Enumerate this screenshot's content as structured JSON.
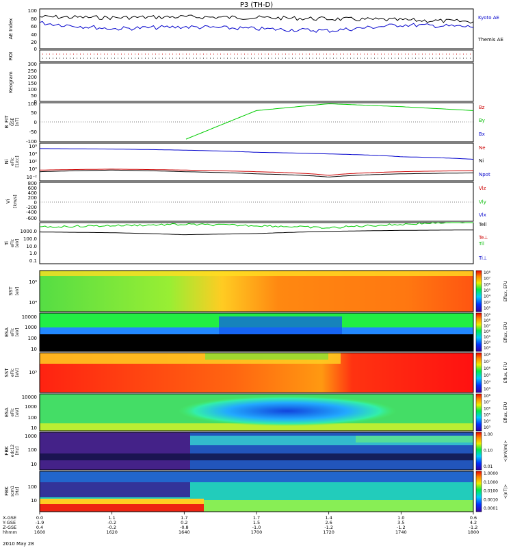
{
  "figure": {
    "title": "P3 (TH-D)",
    "date_label": "2010 May 28"
  },
  "x_axis": {
    "row_labels": [
      "X-GSE",
      "Y-GSE",
      "Z-GSE",
      "hhmm"
    ],
    "columns": [
      {
        "xgse": "0.0",
        "ygse": "-1.9",
        "zgse": "0.4",
        "hhmm": "1600"
      },
      {
        "xgse": "1.1",
        "ygse": "-0.2",
        "zgse": "-0.2",
        "hhmm": "1620"
      },
      {
        "xgse": "1.7",
        "ygse": "0.2",
        "zgse": "-0.8",
        "hhmm": "1640"
      },
      {
        "xgse": "1.7",
        "ygse": "1.5",
        "zgse": "-1.0",
        "hhmm": "1700"
      },
      {
        "xgse": "1.4",
        "ygse": "2.6",
        "zgse": "-1.2",
        "hhmm": "1720"
      },
      {
        "xgse": "1.0",
        "ygse": "3.5",
        "zgse": "-1.2",
        "hhmm": "1740"
      },
      {
        "xgse": "0.6",
        "ygse": "4.2",
        "zgse": "-1.2",
        "hhmm": "1800"
      }
    ]
  },
  "panels": {
    "ae": {
      "ylabel": "AE Index",
      "ticks": [
        "100",
        "80",
        "60",
        "40",
        "20",
        "0"
      ],
      "legend": [
        {
          "text": "Kyoto AE",
          "color": "#0000cc"
        },
        {
          "text": "Themis AE",
          "color": "#000000"
        }
      ]
    },
    "roi": {
      "ylabel": "ROI"
    },
    "keogram": {
      "ylabel": "Keogram",
      "ticks": [
        "300",
        "250",
        "200",
        "150",
        "100",
        "50",
        "0"
      ]
    },
    "bfit": {
      "ylabel": "B_FIT",
      "sublabel1": "GSE",
      "sublabel2": "[nT]",
      "ticks": [
        "100",
        "50",
        "0",
        "-50",
        "-100"
      ],
      "legend": [
        {
          "text": "Bz",
          "color": "#cc0000"
        },
        {
          "text": "By",
          "color": "#00bb00"
        },
        {
          "text": "Bx",
          "color": "#0000cc"
        }
      ]
    },
    "ni": {
      "ylabel": "Ni",
      "sublabel1": "eFlc",
      "sublabel2": "[1/cc]",
      "ticks": [
        "10⁸",
        "10⁴",
        "10²",
        "10⁰",
        "10⁻²"
      ],
      "legend": [
        {
          "text": "Ne",
          "color": "#cc0000"
        },
        {
          "text": "Ni",
          "color": "#000000"
        },
        {
          "text": "Npot",
          "color": "#0000cc"
        }
      ]
    },
    "vi": {
      "ylabel": "Vi",
      "sublabel2": "[km/s]",
      "ticks": [
        "800",
        "600",
        "400",
        "200",
        "0",
        "-200",
        "-400",
        "-600"
      ],
      "legend": [
        {
          "text": "Vlz",
          "color": "#cc0000"
        },
        {
          "text": "Vly",
          "color": "#00bb00"
        },
        {
          "text": "Vlx",
          "color": "#0000cc"
        }
      ]
    },
    "ti": {
      "ylabel": "Ti",
      "sublabel1": "eFlc",
      "sublabel2": "[eV]",
      "ticks": [
        "1000.0",
        "100.0",
        "10.0",
        "1.0",
        "0.1"
      ],
      "legend": [
        {
          "text": "Tell",
          "color": "#000000"
        },
        {
          "text": "Te⊥",
          "color": "#cc0000"
        },
        {
          "text": "Til",
          "color": "#00bb00"
        },
        {
          "text": "Ti⊥",
          "color": "#0000cc"
        }
      ]
    },
    "sst_e": {
      "ylabel": "SST",
      "sublabel2": "[eV]",
      "ticks": [
        "10⁶",
        "10⁴"
      ],
      "cb_label": "Eflux, EFU",
      "cb_ticks": [
        "10⁸",
        "10⁷",
        "10⁶",
        "10⁵",
        "10⁴",
        "10³",
        "10²"
      ]
    },
    "esa_e": {
      "ylabel": "ESA",
      "sublabel1": "eFlc",
      "sublabel2": "[eV]",
      "ticks": [
        "10000",
        "1000",
        "100",
        "10"
      ],
      "cb_label": "Eflux, EFU",
      "cb_ticks": [
        "10⁹",
        "10⁸",
        "10⁷",
        "10⁶",
        "10⁵",
        "10⁴",
        "10³"
      ]
    },
    "sst_i": {
      "ylabel": "SST",
      "sublabel1": "eFlc",
      "sublabel2": "[eV]",
      "ticks": [
        "10⁵"
      ],
      "cb_label": "Eflux, EFU",
      "cb_ticks": [
        "10⁸",
        "10⁷",
        "10⁶",
        "10⁵",
        "10⁴",
        "10³"
      ]
    },
    "esa_i": {
      "ylabel": "ESA",
      "sublabel1": "eFlc",
      "sublabel2": "[eV]",
      "ticks": [
        "10000",
        "1000",
        "100",
        "10"
      ],
      "cb_label": "Eflux, EFU",
      "cb_ticks": [
        "10⁸",
        "10⁷",
        "10⁶",
        "10⁵",
        "10⁴",
        "10³"
      ]
    },
    "fbk1": {
      "ylabel": "FBK",
      "sublabel1": "edc12",
      "sublabel2": "[Hz]",
      "ticks": [
        "1000",
        "100",
        "10"
      ],
      "cb_label": "<|mV/m|>",
      "cb_ticks": [
        "1.00",
        "0.10",
        "0.01"
      ]
    },
    "fbk2": {
      "ylabel": "FBK",
      "sublabel1": "scm1",
      "sublabel2": "[Hz]",
      "ticks": [
        "100",
        "10"
      ],
      "cb_label": "<|nT|>",
      "cb_ticks": [
        "1.0000",
        "0.1000",
        "0.0100",
        "0.0010",
        "0.0001"
      ]
    }
  },
  "chart_data": {
    "type": "line",
    "x": [
      "1600",
      "1620",
      "1640",
      "1700",
      "1720",
      "1740",
      "1800"
    ],
    "series": [
      {
        "name": "Themis AE",
        "panel": "AE Index",
        "values": [
          80,
          78,
          80,
          78,
          75,
          72,
          68
        ]
      },
      {
        "name": "Kyoto AE",
        "panel": "AE Index",
        "values": [
          65,
          50,
          55,
          50,
          45,
          60,
          55
        ]
      },
      {
        "name": "By",
        "panel": "B_FIT",
        "values": [
          null,
          null,
          -90,
          60,
          95,
          80,
          60
        ]
      },
      {
        "name": "Npot",
        "panel": "Ni",
        "values": [
          10000,
          8000,
          5000,
          2000,
          1000,
          300,
          100
        ]
      },
      {
        "name": "Ne",
        "panel": "Ni",
        "values": [
          1.0,
          1.5,
          1.0,
          0.5,
          0.1,
          0.5,
          0.8
        ]
      },
      {
        "name": "Ni",
        "panel": "Ni",
        "values": [
          0.5,
          1.0,
          0.5,
          0.2,
          0.05,
          0.2,
          0.3
        ]
      },
      {
        "name": "Til",
        "panel": "Ti",
        "values": [
          1000,
          1500,
          2000,
          1500,
          800,
          2000,
          4000
        ]
      },
      {
        "name": "Tell",
        "panel": "Ti",
        "values": [
          300,
          250,
          150,
          200,
          350,
          450,
          500
        ]
      }
    ]
  }
}
